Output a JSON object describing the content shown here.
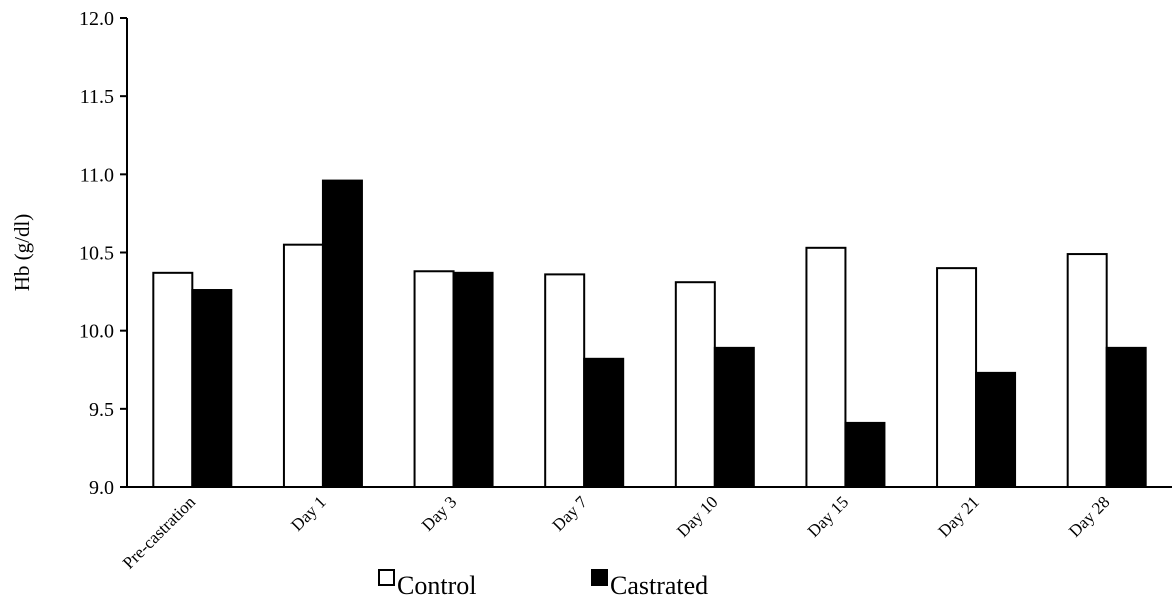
{
  "chart_data": {
    "type": "bar",
    "title": "",
    "xlabel": "",
    "ylabel": "Hb (g/dl)",
    "ylim": [
      9.0,
      12.0
    ],
    "yticks": [
      "9.0",
      "9.5",
      "10.0",
      "10.5",
      "11.0",
      "11.5",
      "12.0"
    ],
    "categories": [
      "Pre-castration",
      "Day 1",
      "Day 3",
      "Day 7",
      "Day 10",
      "Day 15",
      "Day 21",
      "Day 28"
    ],
    "series": [
      {
        "name": "Control",
        "color": "#ffffff",
        "values": [
          10.37,
          10.55,
          10.38,
          10.36,
          10.31,
          10.53,
          10.4,
          10.49
        ]
      },
      {
        "name": "Castrated",
        "color": "#000000",
        "values": [
          10.26,
          10.96,
          10.37,
          9.82,
          9.89,
          9.41,
          9.73,
          9.89
        ]
      }
    ],
    "grid": false,
    "legend_position": "bottom"
  }
}
